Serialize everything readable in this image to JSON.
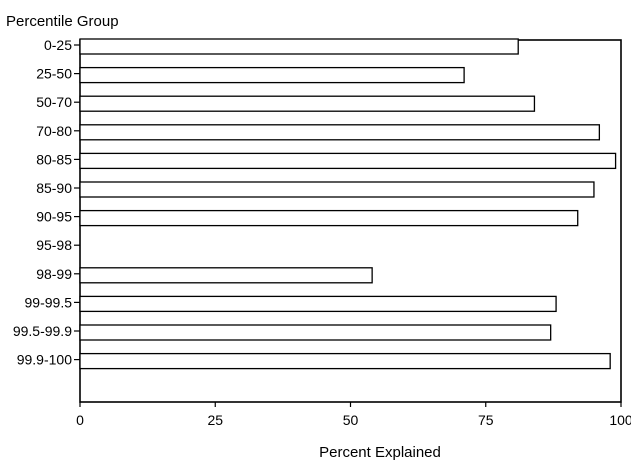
{
  "chart_data": {
    "type": "bar",
    "orientation": "horizontal",
    "ylabel": "Percentile Group",
    "xlabel": "Percent Explained",
    "xlim": [
      0,
      100
    ],
    "xticks": [
      "0",
      "25",
      "50",
      "75",
      "100"
    ],
    "grid": false,
    "categories": [
      "0-25",
      "25-50",
      "50-70",
      "70-80",
      "80-85",
      "85-90",
      "90-95",
      "95-98",
      "98-99",
      "99-99.5",
      "99.5-99.9",
      "99.9-100"
    ],
    "values": [
      81,
      71,
      84,
      96,
      99,
      95,
      92,
      null,
      54,
      88,
      87,
      98
    ]
  }
}
